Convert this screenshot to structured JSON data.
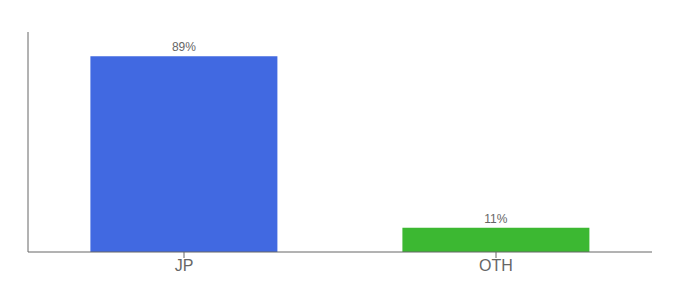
{
  "chart_data": {
    "type": "bar",
    "categories": [
      "JP",
      "OTH"
    ],
    "values": [
      89,
      11
    ],
    "value_labels": [
      "89%",
      "11%"
    ],
    "colors": [
      "#4169e1",
      "#3cb832"
    ],
    "ylim": [
      0,
      100
    ],
    "data_labels": true,
    "tick_labels": "x"
  }
}
